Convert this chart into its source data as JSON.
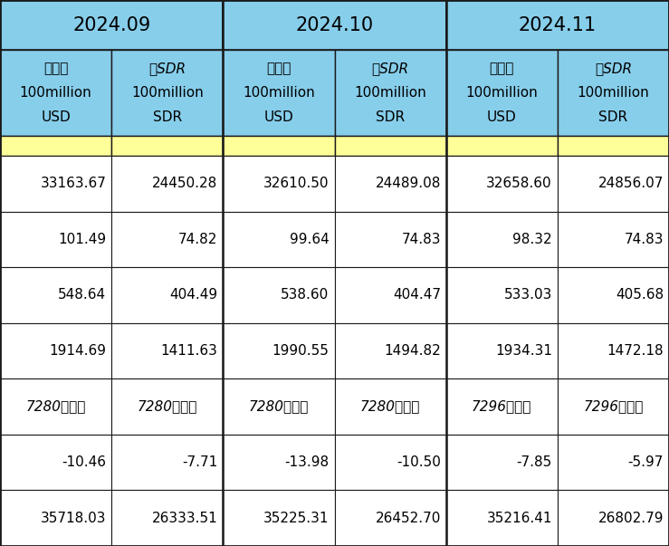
{
  "header_months": [
    "2024.09",
    "2024.10",
    "2024.11"
  ],
  "subheader_labels": [
    "亿USD\n100million\nUSD",
    "亿SDR\n100million\nSDR"
  ],
  "subheader_line1": [
    "亿美元",
    "亿SDR",
    "亿美元",
    "亿SDR",
    "亿美元",
    "亿SDR"
  ],
  "subheader_line2": [
    "100million",
    "100million",
    "100million",
    "100million",
    "100million",
    "100million"
  ],
  "subheader_line3": [
    "USD",
    "SDR",
    "USD",
    "SDR",
    "USD",
    "SDR"
  ],
  "data_rows": [
    [
      "33163.67",
      "24450.28",
      "32610.50",
      "24489.08",
      "32658.60",
      "24856.07"
    ],
    [
      "101.49",
      "74.82",
      "99.64",
      "74.83",
      "98.32",
      "74.83"
    ],
    [
      "548.64",
      "404.49",
      "538.60",
      "404.47",
      "533.03",
      "405.68"
    ],
    [
      "1914.69",
      "1411.63",
      "1990.55",
      "1494.82",
      "1934.31",
      "1472.18"
    ],
    [
      "7280万盎司",
      "7280万盎司",
      "7280万盎司",
      "7280万盎司",
      "7296万盎司",
      "7296万盎司"
    ],
    [
      "-10.46",
      "-7.71",
      "-13.98",
      "-10.50",
      "-7.85",
      "-5.97"
    ],
    [
      "35718.03",
      "26333.51",
      "35225.31",
      "26452.70",
      "35216.41",
      "26802.79"
    ]
  ],
  "header_bg": "#87CEEB",
  "subheader_bg": "#87CEEB",
  "yellow_bg": "#FFFF99",
  "data_bg": "#FFFFFF",
  "border_color": "#1a1a1a",
  "text_color": "#000000"
}
